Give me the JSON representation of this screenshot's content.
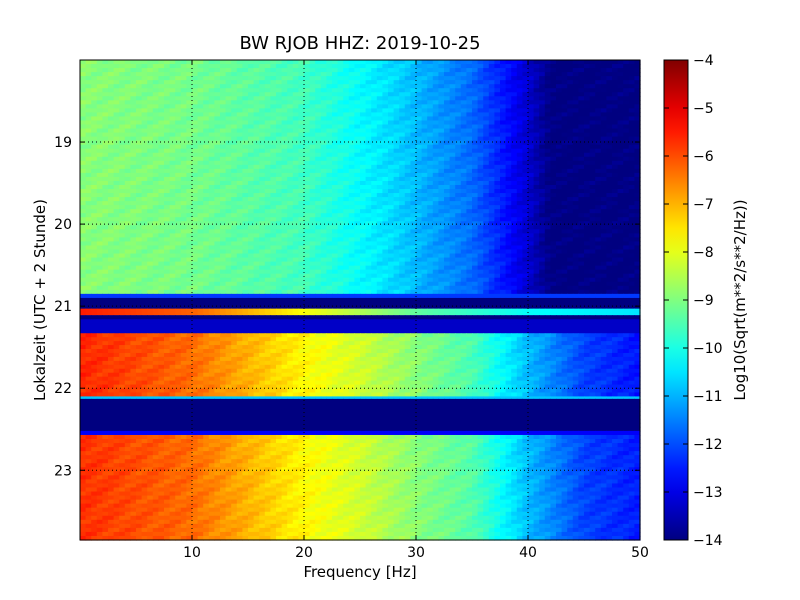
{
  "chart_data": {
    "type": "heatmap",
    "title": "BW RJOB HHZ: 2019-10-25",
    "xlabel": "Frequency [Hz]",
    "ylabel": "Lokalzeit (UTC + 2 Stunde)",
    "colorbar_label": "Log10(Sqrt(m**2/s**2/Hz))",
    "colormap": "jet",
    "grid": true,
    "xlim": [
      0,
      50
    ],
    "ylim": [
      18.0,
      23.85
    ],
    "y_inverted": true,
    "clim": [
      -14,
      -4
    ],
    "x_ticks": [
      10,
      20,
      30,
      40,
      50
    ],
    "y_ticks": [
      19,
      20,
      21,
      22,
      23
    ],
    "colorbar_ticks": [
      -4,
      -5,
      -6,
      -7,
      -8,
      -9,
      -10,
      -11,
      -12,
      -13,
      -14
    ],
    "time_segments": [
      {
        "from": 18.0,
        "to": 20.85,
        "state": "noise",
        "profile": [
          [
            0,
            -8.9
          ],
          [
            10,
            -9.1
          ],
          [
            20,
            -9.6
          ],
          [
            28,
            -10.6
          ],
          [
            35,
            -11.7
          ],
          [
            40,
            -13.2
          ],
          [
            42,
            -14
          ],
          [
            50,
            -14
          ]
        ]
      },
      {
        "from": 20.85,
        "to": 20.9,
        "state": "gap",
        "profile": [
          [
            0,
            -12.2
          ],
          [
            50,
            -12.2
          ]
        ]
      },
      {
        "from": 20.9,
        "to": 21.03,
        "state": "gap",
        "profile": [
          [
            0,
            -14
          ],
          [
            50,
            -14
          ]
        ]
      },
      {
        "from": 21.03,
        "to": 21.11,
        "state": "transient",
        "profile": [
          [
            0,
            -5.5
          ],
          [
            10,
            -6.2
          ],
          [
            20,
            -7.8
          ],
          [
            30,
            -9.3
          ],
          [
            40,
            -10.2
          ],
          [
            50,
            -10.5
          ]
        ]
      },
      {
        "from": 21.11,
        "to": 21.16,
        "state": "gap",
        "profile": [
          [
            0,
            -14
          ],
          [
            50,
            -14
          ]
        ]
      },
      {
        "from": 21.16,
        "to": 21.33,
        "state": "gap",
        "profile": [
          [
            0,
            -13.3
          ],
          [
            50,
            -13.3
          ]
        ]
      },
      {
        "from": 21.33,
        "to": 22.1,
        "state": "noise",
        "profile": [
          [
            0,
            -5.6
          ],
          [
            10,
            -6.3
          ],
          [
            20,
            -7.7
          ],
          [
            25,
            -8.2
          ],
          [
            30,
            -8.9
          ],
          [
            35,
            -9.5
          ],
          [
            40,
            -10.9
          ],
          [
            45,
            -12.1
          ],
          [
            50,
            -12.6
          ]
        ]
      },
      {
        "from": 22.1,
        "to": 22.13,
        "state": "gap",
        "profile": [
          [
            0,
            -10.8
          ],
          [
            50,
            -10.8
          ]
        ]
      },
      {
        "from": 22.13,
        "to": 22.52,
        "state": "gap",
        "profile": [
          [
            0,
            -14
          ],
          [
            50,
            -14
          ]
        ]
      },
      {
        "from": 22.52,
        "to": 22.57,
        "state": "gap",
        "profile": [
          [
            0,
            -12.8
          ],
          [
            50,
            -12.8
          ]
        ]
      },
      {
        "from": 22.57,
        "to": 23.85,
        "state": "noise",
        "profile": [
          [
            0,
            -5.7
          ],
          [
            10,
            -6.3
          ],
          [
            20,
            -7.7
          ],
          [
            25,
            -8.2
          ],
          [
            30,
            -8.9
          ],
          [
            35,
            -9.4
          ],
          [
            40,
            -10.9
          ],
          [
            45,
            -12.1
          ],
          [
            50,
            -12.5
          ]
        ]
      }
    ]
  }
}
